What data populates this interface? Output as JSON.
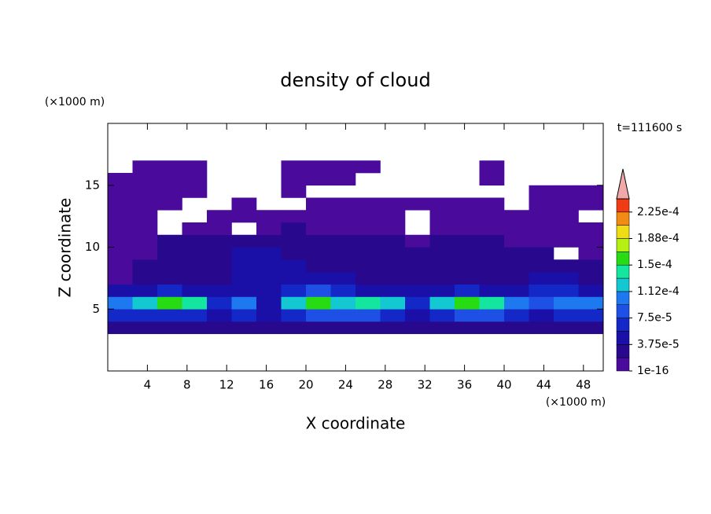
{
  "chart_data": {
    "type": "contour",
    "title": "density of cloud",
    "x_label": "X coordinate",
    "y_label": "Z coordinate",
    "x_unit": "(×1000 m)",
    "y_unit": "(×1000 m)",
    "annotation": "t=111600 s",
    "xlim": [
      0,
      50
    ],
    "ylim": [
      0,
      20
    ],
    "xticks": [
      4,
      8,
      12,
      16,
      20,
      24,
      28,
      32,
      36,
      40,
      44,
      48
    ],
    "yticks": [
      5,
      10,
      15
    ],
    "xbins": [
      0,
      2.5,
      5,
      7.5,
      10,
      12.5,
      15,
      17.5,
      20,
      22.5,
      25,
      27.5,
      30,
      32.5,
      35,
      37.5,
      40,
      42.5,
      45,
      47.5,
      50
    ],
    "ybins": [
      3,
      4,
      5,
      6,
      7,
      8,
      9,
      10,
      11,
      12,
      13,
      14,
      15,
      16,
      17
    ],
    "values": [
      [
        2e-05,
        2e-05,
        2e-05,
        2e-05,
        2e-05,
        2e-05,
        2e-05,
        2e-05,
        2e-05,
        2e-05,
        2e-05,
        2e-05,
        2e-05,
        2e-05,
        2e-05,
        2e-05,
        2e-05,
        2e-05,
        2e-05,
        2e-05
      ],
      [
        7e-05,
        7e-05,
        6e-05,
        6e-05,
        4e-05,
        6e-05,
        4e-05,
        7e-05,
        8e-05,
        8e-05,
        8e-05,
        7e-05,
        5e-05,
        6e-05,
        8e-05,
        8e-05,
        7e-05,
        5e-05,
        6e-05,
        7e-05
      ],
      [
        0.00011,
        0.00012,
        0.00015,
        0.00014,
        6e-05,
        0.0001,
        4e-05,
        0.00012,
        0.00015,
        0.00013,
        0.00014,
        0.00012,
        6e-05,
        0.00013,
        0.00015,
        0.00014,
        0.00011,
        8e-05,
        0.0001,
        0.00011
      ],
      [
        5e-05,
        5e-05,
        6e-05,
        5e-05,
        4e-05,
        5e-05,
        5e-05,
        6e-05,
        9e-05,
        6e-05,
        5e-05,
        5e-05,
        4e-05,
        5e-05,
        6e-05,
        5e-05,
        5e-05,
        6e-05,
        6e-05,
        5e-05
      ],
      [
        1.5e-05,
        2e-05,
        3e-05,
        3e-05,
        3.5e-05,
        4e-05,
        4.5e-05,
        4e-05,
        5e-05,
        4e-05,
        3.5e-05,
        3e-05,
        3e-05,
        3e-05,
        3.5e-05,
        3e-05,
        3e-05,
        4e-05,
        4e-05,
        3e-05
      ],
      [
        1e-05,
        2e-05,
        2.5e-05,
        3e-05,
        3e-05,
        4e-05,
        5e-05,
        4e-05,
        3e-05,
        3e-05,
        3e-05,
        2.5e-05,
        2.5e-05,
        2.5e-05,
        3e-05,
        2.5e-05,
        2.5e-05,
        3e-05,
        2.5e-05,
        2e-05
      ],
      [
        1e-05,
        1.5e-05,
        2.5e-05,
        2.5e-05,
        3e-05,
        4e-05,
        5e-05,
        3e-05,
        2.5e-05,
        2.5e-05,
        2.5e-05,
        2e-05,
        2e-05,
        2.5e-05,
        2.5e-05,
        2e-05,
        2e-05,
        2e-05,
        null,
        1e-05
      ],
      [
        1e-05,
        1e-05,
        2e-05,
        2e-05,
        2e-05,
        2.5e-05,
        3e-05,
        2.5e-05,
        2e-05,
        2e-05,
        2e-05,
        2e-05,
        1.5e-05,
        2e-05,
        2e-05,
        2e-05,
        1.5e-05,
        1.5e-05,
        1e-05,
        1e-05
      ],
      [
        1e-05,
        1e-05,
        null,
        1e-05,
        1e-05,
        null,
        1.5e-05,
        2e-05,
        1.5e-05,
        1.5e-05,
        1.5e-05,
        1e-05,
        null,
        1e-05,
        1e-05,
        1.5e-05,
        1e-05,
        1e-05,
        1e-05,
        1e-05
      ],
      [
        1e-05,
        1e-05,
        null,
        null,
        1e-05,
        1e-05,
        1e-05,
        1e-05,
        1e-05,
        1e-05,
        1e-05,
        1e-05,
        null,
        1e-05,
        1e-05,
        1e-05,
        1e-05,
        1e-05,
        1e-05,
        null
      ],
      [
        1e-05,
        1e-05,
        1e-05,
        null,
        null,
        1e-05,
        null,
        null,
        1e-05,
        1e-05,
        1e-05,
        1e-05,
        1e-05,
        1e-05,
        1e-05,
        1e-05,
        null,
        1e-05,
        1e-05,
        1e-05
      ],
      [
        1e-05,
        1e-05,
        1e-05,
        1e-05,
        null,
        null,
        null,
        1e-05,
        null,
        null,
        null,
        null,
        null,
        null,
        null,
        null,
        null,
        1e-05,
        1e-05,
        1e-05
      ],
      [
        1e-05,
        1e-05,
        1e-05,
        1e-05,
        null,
        null,
        null,
        1e-05,
        1e-05,
        1e-05,
        null,
        null,
        null,
        null,
        null,
        1e-05,
        null,
        null,
        null,
        null
      ],
      [
        null,
        1e-05,
        1e-05,
        1e-05,
        null,
        null,
        null,
        1e-05,
        1e-05,
        1e-05,
        1e-05,
        null,
        null,
        null,
        null,
        1e-05,
        null,
        null,
        null,
        null
      ]
    ],
    "levels": [
      1e-16,
      1.875e-05,
      3.75e-05,
      5.625e-05,
      7.5e-05,
      9.375e-05,
      0.0001125,
      0.00013125,
      0.00015,
      0.00016875,
      0.0001875,
      0.00020625,
      0.000225,
      0.00024375
    ],
    "colors": [
      "#4a0a9c",
      "#28088c",
      "#1a10a8",
      "#1428c8",
      "#1e50e6",
      "#1e78f0",
      "#14c8d2",
      "#14e6a0",
      "#28dc14",
      "#b4f014",
      "#f0dc14",
      "#f08c14",
      "#f03c14"
    ],
    "extend_color": "#f0a8a8",
    "cbar_ticks": [
      1e-16,
      {
        "value": 3.75e-05,
        "label": "3.75e-5"
      },
      {
        "value": 7.5e-05,
        "label": "7.5e-5"
      },
      {
        "value": 0.0001125,
        "label": "1.12e-4"
      },
      {
        "value": 0.00015,
        "label": "1.5e-4"
      },
      {
        "value": 0.0001875,
        "label": "1.88e-4"
      },
      {
        "value": 0.000225,
        "label": "2.25e-4"
      }
    ]
  }
}
